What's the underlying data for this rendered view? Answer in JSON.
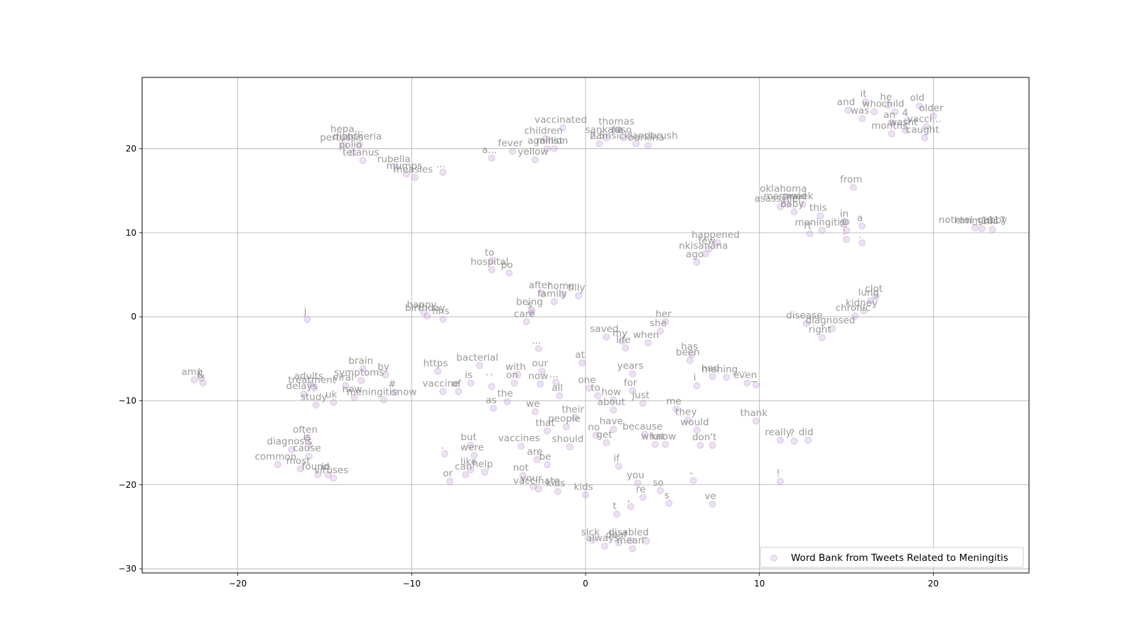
{
  "chart_data": {
    "type": "scatter",
    "title": "",
    "xlabel": "",
    "ylabel": "",
    "xlim": [
      -25.5,
      25.5
    ],
    "ylim": [
      -30.5,
      28.5
    ],
    "xticks": [
      -20,
      -10,
      0,
      10,
      20
    ],
    "yticks": [
      -30,
      -20,
      -10,
      0,
      10,
      20
    ],
    "grid": true,
    "legend": "lower right",
    "point_color": "#c39bd3",
    "label_color": "#7f7f7f",
    "series": [
      {
        "name": "Word Bank from Tweets Related to Meningitis",
        "points": [
          {
            "x": -16,
            "y": -0.3,
            "label": "j"
          },
          {
            "x": -9.8,
            "y": 16.6,
            "label": "measles"
          },
          {
            "x": -10.3,
            "y": 17.0,
            "label": "mumps"
          },
          {
            "x": -10.9,
            "y": 17.8,
            "label": "rubella"
          },
          {
            "x": -12.8,
            "y": 18.6,
            "label": "tetanus"
          },
          {
            "x": -13.4,
            "y": 19.5,
            "label": "polio"
          },
          {
            "x": -13.9,
            "y": 20.4,
            "label": "pertussis"
          },
          {
            "x": -13.0,
            "y": 20.5,
            "label": "diphtheria"
          },
          {
            "x": -13.6,
            "y": 21.4,
            "label": "hepa..."
          },
          {
            "x": -8.2,
            "y": 17.2,
            "label": "..."
          },
          {
            "x": -5.4,
            "y": 18.9,
            "label": "a..."
          },
          {
            "x": -4.2,
            "y": 19.7,
            "label": "fever"
          },
          {
            "x": -2.9,
            "y": 18.7,
            "label": "yellow"
          },
          {
            "x": -2.2,
            "y": 20.0,
            "label": "against"
          },
          {
            "x": -1.8,
            "y": 20.0,
            "label": "million"
          },
          {
            "x": -2.3,
            "y": 21.2,
            "label": "children"
          },
          {
            "x": -1.3,
            "y": 22.5,
            "label": "vaccinated"
          },
          {
            "x": 0.8,
            "y": 20.6,
            "label": "2.5"
          },
          {
            "x": 1.2,
            "y": 21.3,
            "label": "sankara"
          },
          {
            "x": 1.9,
            "y": 22.3,
            "label": "thomas"
          },
          {
            "x": 2.2,
            "y": 21.3,
            "label": "faso"
          },
          {
            "x": 3.6,
            "y": 20.4,
            "label": "burkina"
          },
          {
            "x": 2.9,
            "y": 20.6,
            "label": "hamsicklandbrush"
          },
          {
            "x": -5.4,
            "y": 5.6,
            "label": "hospital"
          },
          {
            "x": -5.4,
            "y": 6.7,
            "label": "to"
          },
          {
            "x": -4.4,
            "y": 5.2,
            "label": "po"
          },
          {
            "x": -2.5,
            "y": 2.8,
            "label": "after"
          },
          {
            "x": -1.3,
            "y": 2.7,
            "label": "home"
          },
          {
            "x": -0.4,
            "y": 2.5,
            "label": "tilly"
          },
          {
            "x": -1.8,
            "y": 1.8,
            "label": "family"
          },
          {
            "x": -3.1,
            "y": 0.8,
            "label": "being"
          },
          {
            "x": -3.1,
            "y": 0.5,
            "label": "s"
          },
          {
            "x": -3.4,
            "y": -0.6,
            "label": "care"
          },
          {
            "x": -9.3,
            "y": 0.5,
            "label": "happy"
          },
          {
            "x": -9.1,
            "y": 0.1,
            "label": "birthday"
          },
          {
            "x": -8.2,
            "y": -0.3,
            "label": "nhs"
          },
          {
            "x": 6.4,
            "y": 6.5,
            "label": "ago"
          },
          {
            "x": 7.1,
            "y": 8.1,
            "label": "few"
          },
          {
            "x": 7.6,
            "y": 8.8,
            "label": "happened"
          },
          {
            "x": 6.9,
            "y": 7.5,
            "label": "nkisanana"
          },
          {
            "x": 11.2,
            "y": 13.1,
            "label": "asassyller"
          },
          {
            "x": 11.6,
            "y": 13.4,
            "label": "mermaid"
          },
          {
            "x": 12.0,
            "y": 12.5,
            "label": "baby"
          },
          {
            "x": 12.5,
            "y": 13.4,
            "label": "week"
          },
          {
            "x": 11.5,
            "y": 14.3,
            "label": "oklahoma"
          },
          {
            "x": 13.5,
            "y": 12.0,
            "label": "this"
          },
          {
            "x": 15.4,
            "y": 15.4,
            "label": "from"
          },
          {
            "x": 15.0,
            "y": 11.3,
            "label": "in"
          },
          {
            "x": 15.9,
            "y": 10.8,
            "label": "a"
          },
          {
            "x": 15.0,
            "y": 10.3,
            "label": "@"
          },
          {
            "x": 12.9,
            "y": 9.9,
            "label": "rt"
          },
          {
            "x": 13.6,
            "y": 10.3,
            "label": "meningitis"
          },
          {
            "x": 15.0,
            "y": 9.2,
            "label": ":"
          },
          {
            "x": 15.9,
            "y": 8.8,
            "label": "."
          },
          {
            "x": 22.8,
            "y": 10.5,
            "label": "kimm1017"
          },
          {
            "x": 22.4,
            "y": 10.6,
            "label": "notreal_gabby"
          },
          {
            "x": 23.4,
            "y": 10.4,
            "label": "mr"
          },
          {
            "x": 15.1,
            "y": 24.6,
            "label": "and"
          },
          {
            "x": 16.1,
            "y": 25.6,
            "label": "it"
          },
          {
            "x": 16.6,
            "y": 24.4,
            "label": "who"
          },
          {
            "x": 15.9,
            "y": 23.6,
            "label": "was"
          },
          {
            "x": 17.4,
            "y": 25.2,
            "label": "he"
          },
          {
            "x": 17.8,
            "y": 24.4,
            "label": "child"
          },
          {
            "x": 17.6,
            "y": 23.1,
            "label": "an"
          },
          {
            "x": 18.5,
            "y": 23.3,
            "label": "4"
          },
          {
            "x": 19.2,
            "y": 25.1,
            "label": "old"
          },
          {
            "x": 20.0,
            "y": 23.9,
            "label": "older"
          },
          {
            "x": 19.6,
            "y": 22.6,
            "label": "vacci..."
          },
          {
            "x": 17.6,
            "y": 21.8,
            "label": "months"
          },
          {
            "x": 18.4,
            "y": 22.2,
            "label": "wasnt"
          },
          {
            "x": 19.5,
            "y": 21.3,
            "label": "caught"
          },
          {
            "x": 16.4,
            "y": 1.9,
            "label": "lung"
          },
          {
            "x": 16.7,
            "y": 2.4,
            "label": "clot"
          },
          {
            "x": 16.0,
            "y": 0.7,
            "label": "kidney"
          },
          {
            "x": 15.5,
            "y": 0.1,
            "label": "chronic"
          },
          {
            "x": 12.7,
            "y": -0.8,
            "label": "disease"
          },
          {
            "x": 14.2,
            "y": -1.4,
            "label": "diagnosed"
          },
          {
            "x": 13.6,
            "y": -2.5,
            "label": "right"
          },
          {
            "x": 4.6,
            "y": -0.6,
            "label": "her"
          },
          {
            "x": 4.3,
            "y": -1.7,
            "label": "she"
          },
          {
            "x": 1.2,
            "y": -2.4,
            "label": "saved"
          },
          {
            "x": 2.3,
            "y": -3.7,
            "label": "life"
          },
          {
            "x": 2.1,
            "y": -2.9,
            "label": "my"
          },
          {
            "x": 3.6,
            "y": -3.1,
            "label": "when"
          },
          {
            "x": -2.7,
            "y": -3.8,
            "label": "..."
          },
          {
            "x": 6.1,
            "y": -4.5,
            "label": "has"
          },
          {
            "x": 6.0,
            "y": -5.2,
            "label": "been"
          },
          {
            "x": 6.4,
            "y": -8.2,
            "label": "i"
          },
          {
            "x": 7.3,
            "y": -7.1,
            "label": "had"
          },
          {
            "x": 8.1,
            "y": -7.2,
            "label": "mening..."
          },
          {
            "x": 9.3,
            "y": -7.9,
            "label": "even"
          },
          {
            "x": 9.8,
            "y": -8.1,
            "label": "_"
          },
          {
            "x": -0.2,
            "y": -5.5,
            "label": "at"
          },
          {
            "x": -2.5,
            "y": -6.5,
            "label": "our"
          },
          {
            "x": -3.9,
            "y": -6.9,
            "label": "with"
          },
          {
            "x": -6.1,
            "y": -5.8,
            "label": "bacterial"
          },
          {
            "x": -8.5,
            "y": -6.5,
            "label": "https"
          },
          {
            "x": -12.8,
            "y": -6.2,
            "label": "brain"
          },
          {
            "x": -11.5,
            "y": -6.9,
            "label": "by"
          },
          {
            "x": -12.9,
            "y": -7.6,
            "label": "symptoms"
          },
          {
            "x": -13.8,
            "y": -8.2,
            "label": "viral"
          },
          {
            "x": -15.8,
            "y": -8.0,
            "label": "adults"
          },
          {
            "x": -15.6,
            "y": -8.5,
            "label": "treatment"
          },
          {
            "x": -16.2,
            "y": -9.2,
            "label": "delays"
          },
          {
            "x": -15.5,
            "y": -10.5,
            "label": "study"
          },
          {
            "x": -14.5,
            "y": -10.2,
            "label": "uk"
          },
          {
            "x": -13.3,
            "y": -9.6,
            "label": "new"
          },
          {
            "x": -11.6,
            "y": -9.9,
            "label": "meningitisnow"
          },
          {
            "x": -11.0,
            "y": -9.0,
            "label": "#"
          },
          {
            "x": -22.5,
            "y": -7.5,
            "label": "amp"
          },
          {
            "x": -22.0,
            "y": -7.9,
            "label": "&"
          },
          {
            "x": -22.1,
            "y": -7.3,
            "label": ";"
          },
          {
            "x": -6.6,
            "y": -7.9,
            "label": "is"
          },
          {
            "x": -5.4,
            "y": -8.3,
            "label": "``"
          },
          {
            "x": -4.1,
            "y": -7.9,
            "label": "on"
          },
          {
            "x": -2.6,
            "y": -8.0,
            "label": "now"
          },
          {
            "x": -1.7,
            "y": -7.8,
            "label": "..."
          },
          {
            "x": -1.5,
            "y": -9.4,
            "label": "all"
          },
          {
            "x": -8.2,
            "y": -8.9,
            "label": "vaccine"
          },
          {
            "x": -7.3,
            "y": -8.9,
            "label": "of"
          },
          {
            "x": -4.5,
            "y": -10.1,
            "label": "the"
          },
          {
            "x": -5.3,
            "y": -10.9,
            "label": "as"
          },
          {
            "x": -2.9,
            "y": -11.3,
            "label": "we"
          },
          {
            "x": 0.2,
            "y": -8.5,
            "label": "one"
          },
          {
            "x": 0.7,
            "y": -9.4,
            "label": "to"
          },
          {
            "x": 1.6,
            "y": -9.9,
            "label": "how"
          },
          {
            "x": 1.6,
            "y": -11.1,
            "label": "about"
          },
          {
            "x": 2.7,
            "y": -8.8,
            "label": "for"
          },
          {
            "x": 2.7,
            "y": -6.8,
            "label": "years"
          },
          {
            "x": 3.3,
            "y": -10.3,
            "label": "just"
          },
          {
            "x": 5.2,
            "y": -11.0,
            "label": "me"
          },
          {
            "x": 5.9,
            "y": -12.3,
            "label": "they"
          },
          {
            "x": 6.4,
            "y": -13.5,
            "label": "would"
          },
          {
            "x": 9.8,
            "y": -12.4,
            "label": "thank"
          },
          {
            "x": -0.6,
            "y": -12.0,
            "label": "their"
          },
          {
            "x": -1.1,
            "y": -13.1,
            "label": "people"
          },
          {
            "x": -2.2,
            "y": -13.6,
            "label": "that"
          },
          {
            "x": 1.6,
            "y": -13.4,
            "label": "have"
          },
          {
            "x": 0.6,
            "y": -14.1,
            "label": "no"
          },
          {
            "x": 1.2,
            "y": -15.0,
            "label": "get"
          },
          {
            "x": 3.4,
            "y": -14.0,
            "label": "because"
          },
          {
            "x": 4.0,
            "y": -15.2,
            "label": "what"
          },
          {
            "x": 4.6,
            "y": -15.2,
            "label": "know"
          },
          {
            "x": 6.6,
            "y": -15.3,
            "label": "do"
          },
          {
            "x": 7.3,
            "y": -15.3,
            "label": "n't"
          },
          {
            "x": 11.2,
            "y": -14.7,
            "label": "really"
          },
          {
            "x": 12.0,
            "y": -14.8,
            "label": "?"
          },
          {
            "x": 12.8,
            "y": -14.7,
            "label": "did"
          },
          {
            "x": 11.2,
            "y": -19.6,
            "label": "!"
          },
          {
            "x": 6.2,
            "y": -19.5,
            "label": "-"
          },
          {
            "x": -16.0,
            "y": -14.4,
            "label": "often"
          },
          {
            "x": -15.9,
            "y": -15.3,
            "label": "is"
          },
          {
            "x": -16.9,
            "y": -15.8,
            "label": "diagnosis"
          },
          {
            "x": -15.9,
            "y": -16.6,
            "label": "cause"
          },
          {
            "x": -17.7,
            "y": -17.6,
            "label": "common"
          },
          {
            "x": -16.4,
            "y": -18.1,
            "label": "most"
          },
          {
            "x": -15.4,
            "y": -18.8,
            "label": "found"
          },
          {
            "x": -14.8,
            "y": -18.8,
            "label": "in"
          },
          {
            "x": -14.5,
            "y": -19.2,
            "label": "viruses"
          },
          {
            "x": -8.1,
            "y": -16.3,
            "label": "."
          },
          {
            "x": -6.6,
            "y": -15.3,
            "label": "but"
          },
          {
            "x": -6.4,
            "y": -16.5,
            "label": "were"
          },
          {
            "x": -6.6,
            "y": -18.2,
            "label": "like"
          },
          {
            "x": -6.9,
            "y": -18.8,
            "label": "can"
          },
          {
            "x": -5.8,
            "y": -18.5,
            "label": "help"
          },
          {
            "x": -7.8,
            "y": -19.6,
            "label": "or"
          },
          {
            "x": -3.7,
            "y": -15.4,
            "label": "vaccines"
          },
          {
            "x": -2.8,
            "y": -17.0,
            "label": "are"
          },
          {
            "x": -2.2,
            "y": -17.6,
            "label": "be"
          },
          {
            "x": -0.9,
            "y": -15.5,
            "label": "should"
          },
          {
            "x": -3.6,
            "y": -18.9,
            "label": "not"
          },
          {
            "x": -3.0,
            "y": -20.2,
            "label": "your"
          },
          {
            "x": -2.7,
            "y": -20.5,
            "label": "vaccinate"
          },
          {
            "x": -1.6,
            "y": -20.8,
            "label": "kids"
          },
          {
            "x": 0.0,
            "y": -21.2,
            "label": "kids"
          },
          {
            "x": 1.9,
            "y": -17.8,
            "label": "if"
          },
          {
            "x": 3.0,
            "y": -19.8,
            "label": "you"
          },
          {
            "x": 4.3,
            "y": -20.7,
            "label": "so"
          },
          {
            "x": 3.3,
            "y": -21.5,
            "label": "re"
          },
          {
            "x": 2.6,
            "y": -22.6,
            "label": ","
          },
          {
            "x": 4.8,
            "y": -22.2,
            "label": "s"
          },
          {
            "x": 1.8,
            "y": -23.5,
            "label": "t"
          },
          {
            "x": 7.3,
            "y": -22.3,
            "label": "ve"
          },
          {
            "x": 0.4,
            "y": -26.6,
            "label": "sick"
          },
          {
            "x": 1.1,
            "y": -27.3,
            "label": "always"
          },
          {
            "x": 1.9,
            "y": -26.9,
            "label": "deaf"
          },
          {
            "x": 2.6,
            "y": -26.6,
            "label": "disabled"
          },
          {
            "x": 2.7,
            "y": -27.6,
            "label": "mean"
          },
          {
            "x": 3.5,
            "y": -26.7,
            "label": "_"
          }
        ]
      }
    ]
  }
}
